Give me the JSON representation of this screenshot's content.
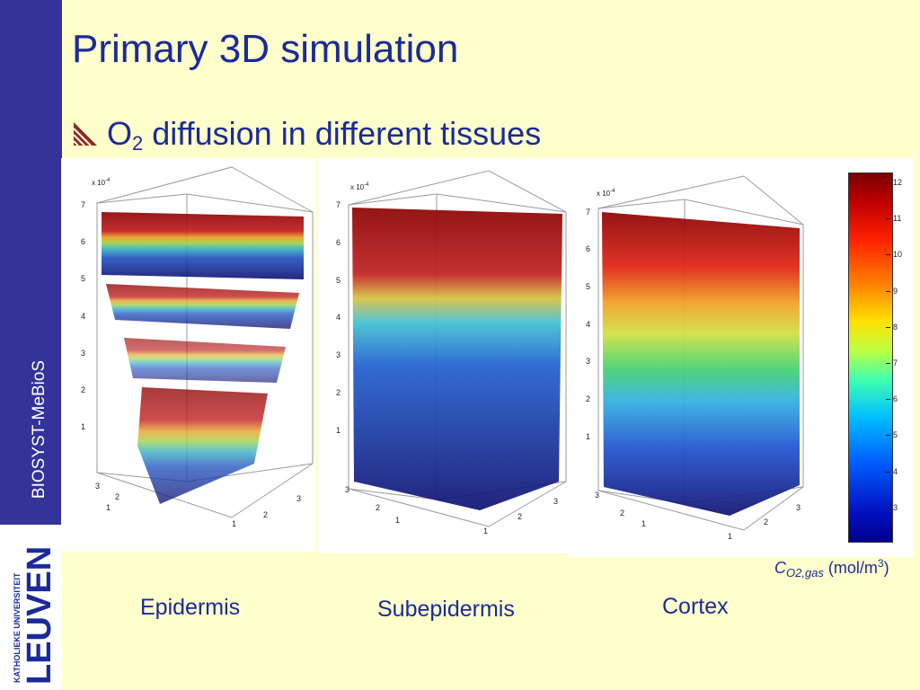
{
  "sidebar": {
    "label": "BIOSYST-MeBioS"
  },
  "logo": {
    "line1": "KATHOLIEKE UNIVERSITEIT",
    "line2": "LEUVEN"
  },
  "title": "Primary 3D simulation",
  "subtitle": {
    "o": "O",
    "sub": "2",
    "rest": " diffusion in different tissues"
  },
  "panels": [
    {
      "name": "Epidermis",
      "scale_label": "x 10",
      "scale_exp": "-4",
      "z_ticks": [
        "1",
        "2",
        "3",
        "4",
        "5",
        "6",
        "7"
      ],
      "x_ticks": [
        "1",
        "2",
        "3"
      ],
      "y_ticks": [
        "1",
        "2",
        "3"
      ]
    },
    {
      "name": "Subepidermis",
      "scale_label": "x 10",
      "scale_exp": "-4",
      "z_ticks": [
        "1",
        "2",
        "3",
        "4",
        "5",
        "6",
        "7"
      ],
      "x_ticks": [
        "1",
        "2",
        "3"
      ],
      "y_ticks": [
        "1",
        "2",
        "3"
      ]
    },
    {
      "name": "Cortex",
      "scale_label": "x 10",
      "scale_exp": "-4",
      "z_ticks": [
        "1",
        "2",
        "3",
        "4",
        "5",
        "6",
        "7"
      ],
      "x_ticks": [
        "1",
        "2",
        "3"
      ],
      "y_ticks": [
        "1",
        "2",
        "3"
      ]
    }
  ],
  "colorbar": {
    "ticks": [
      "12",
      "11",
      "10",
      "9",
      "8",
      "7",
      "6",
      "5",
      "4",
      "3"
    ],
    "min": 2.1,
    "max": 12.3,
    "unit_symbol": "C",
    "unit_sub": "O2,gas",
    "unit_paren_open": " (mol/m",
    "unit_sup": "3",
    "unit_paren_close": ")"
  },
  "colors": {
    "accent": "#333399",
    "text": "#1B2A9A",
    "background": "#FFFFCC"
  }
}
